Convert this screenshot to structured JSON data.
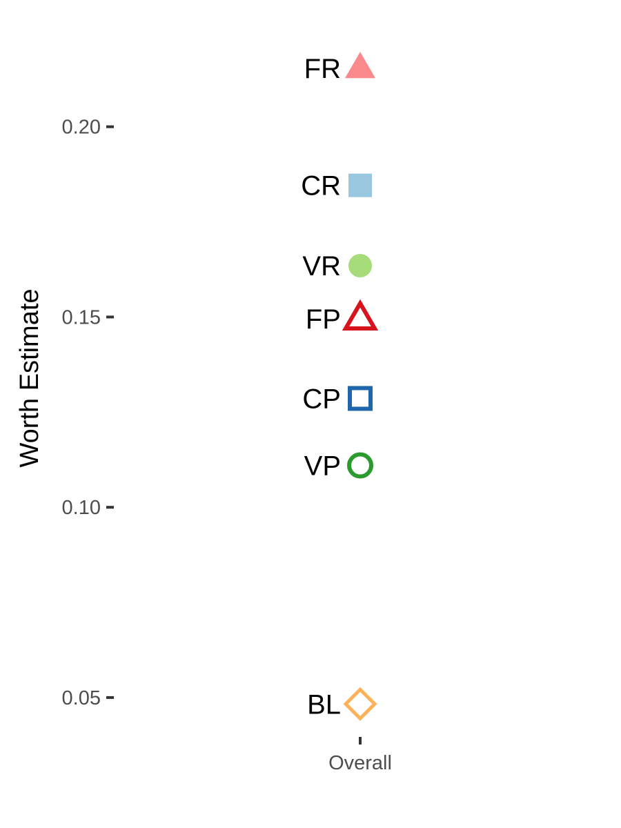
{
  "chart_data": {
    "type": "scatter",
    "title": "",
    "xlabel": "",
    "ylabel": "Worth Estimate",
    "x_categories": [
      "Overall"
    ],
    "yticks": [
      {
        "value": 0.05,
        "label": "0.05"
      },
      {
        "value": 0.1,
        "label": "0.10"
      },
      {
        "value": 0.15,
        "label": "0.15"
      },
      {
        "value": 0.2,
        "label": "0.20"
      }
    ],
    "ylim": [
      0.0411,
      0.2266
    ],
    "grid": false,
    "legend": "none",
    "points": [
      {
        "label": "FR",
        "x": "Overall",
        "y": 0.2154,
        "shape": "triangle",
        "filled": true,
        "color": "#fb8a8c"
      },
      {
        "label": "CR",
        "x": "Overall",
        "y": 0.1846,
        "shape": "square",
        "filled": true,
        "color": "#9ac7e0"
      },
      {
        "label": "VR",
        "x": "Overall",
        "y": 0.1635,
        "shape": "circle",
        "filled": true,
        "color": "#a6dc7a"
      },
      {
        "label": "FP",
        "x": "Overall",
        "y": 0.1495,
        "shape": "triangle",
        "filled": false,
        "color": "#d7141d"
      },
      {
        "label": "CP",
        "x": "Overall",
        "y": 0.1286,
        "shape": "square",
        "filled": false,
        "color": "#1f66ac"
      },
      {
        "label": "VP",
        "x": "Overall",
        "y": 0.111,
        "shape": "circle",
        "filled": false,
        "color": "#2c9b2f"
      },
      {
        "label": "BL",
        "x": "Overall",
        "y": 0.0483,
        "shape": "diamond",
        "filled": false,
        "color": "#fbb25a"
      }
    ]
  }
}
